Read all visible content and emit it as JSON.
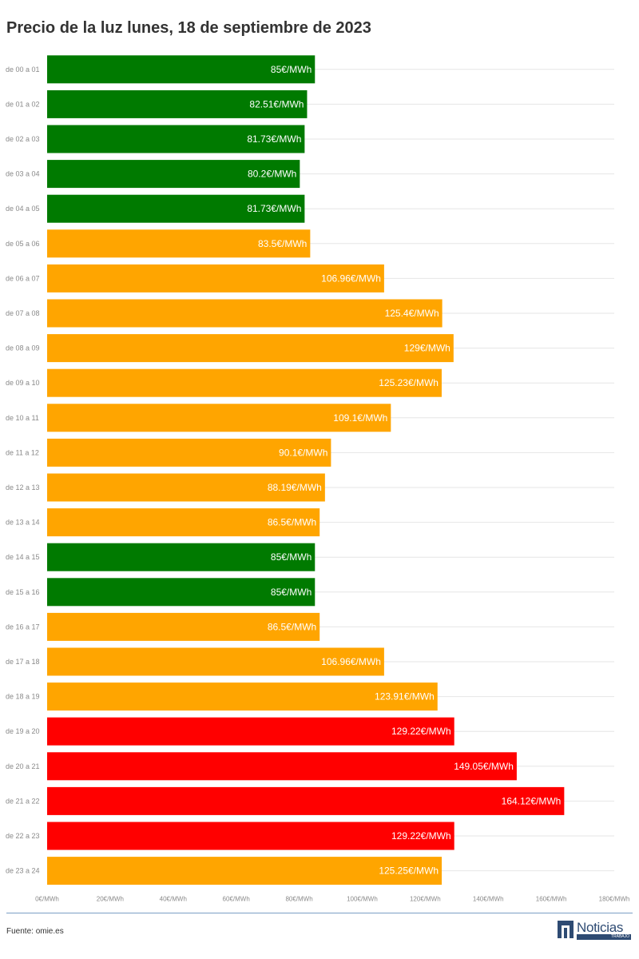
{
  "title": "Precio de la luz lunes, 18 de septiembre de 2023",
  "source": "Fuente: omie.es",
  "logo": {
    "name": "Noticias",
    "sub": "TRABAJO"
  },
  "colors": {
    "green": "#007a00",
    "orange": "#ffa500",
    "red": "#ff0000",
    "grid": "#e6e6e6",
    "brand": "#2e4b73"
  },
  "chart_data": {
    "type": "bar",
    "orientation": "horizontal",
    "title": "Precio de la luz lunes, 18 de septiembre de 2023",
    "xlim": [
      0,
      180
    ],
    "x_ticks": [
      "0€/MWh",
      "20€/MWh",
      "40€/MWh",
      "60€/MWh",
      "80€/MWh",
      "100€/MWh",
      "120€/MWh",
      "140€/MWh",
      "160€/MWh",
      "180€/MWh"
    ],
    "grid": true,
    "categories": [
      "de 00 a 01",
      "de 01 a 02",
      "de 02 a 03",
      "de 03 a 04",
      "de 04 a 05",
      "de 05 a 06",
      "de 06 a 07",
      "de 07 a 08",
      "de 08 a 09",
      "de 09 a 10",
      "de 10 a 11",
      "de 11 a 12",
      "de 12 a 13",
      "de 13 a 14",
      "de 14 a 15",
      "de 15 a 16",
      "de 16 a 17",
      "de 17 a 18",
      "de 18 a 19",
      "de 19 a 20",
      "de 20 a 21",
      "de 21 a 22",
      "de 22 a 23",
      "de 23 a 24"
    ],
    "values": [
      85,
      82.51,
      81.73,
      80.2,
      81.73,
      83.5,
      106.96,
      125.4,
      129,
      125.23,
      109.1,
      90.1,
      88.19,
      86.5,
      85,
      85,
      86.5,
      106.96,
      123.91,
      129.22,
      149.05,
      164.12,
      129.22,
      125.25
    ],
    "labels": [
      "85€/MWh",
      "82.51€/MWh",
      "81.73€/MWh",
      "80.2€/MWh",
      "81.73€/MWh",
      "83.5€/MWh",
      "106.96€/MWh",
      "125.4€/MWh",
      "129€/MWh",
      "125.23€/MWh",
      "109.1€/MWh",
      "90.1€/MWh",
      "88.19€/MWh",
      "86.5€/MWh",
      "85€/MWh",
      "85€/MWh",
      "86.5€/MWh",
      "106.96€/MWh",
      "123.91€/MWh",
      "129.22€/MWh",
      "149.05€/MWh",
      "164.12€/MWh",
      "129.22€/MWh",
      "125.25€/MWh"
    ],
    "bar_colors": [
      "green",
      "green",
      "green",
      "green",
      "green",
      "orange",
      "orange",
      "orange",
      "orange",
      "orange",
      "orange",
      "orange",
      "orange",
      "orange",
      "green",
      "green",
      "orange",
      "orange",
      "orange",
      "red",
      "red",
      "red",
      "red",
      "orange"
    ]
  }
}
